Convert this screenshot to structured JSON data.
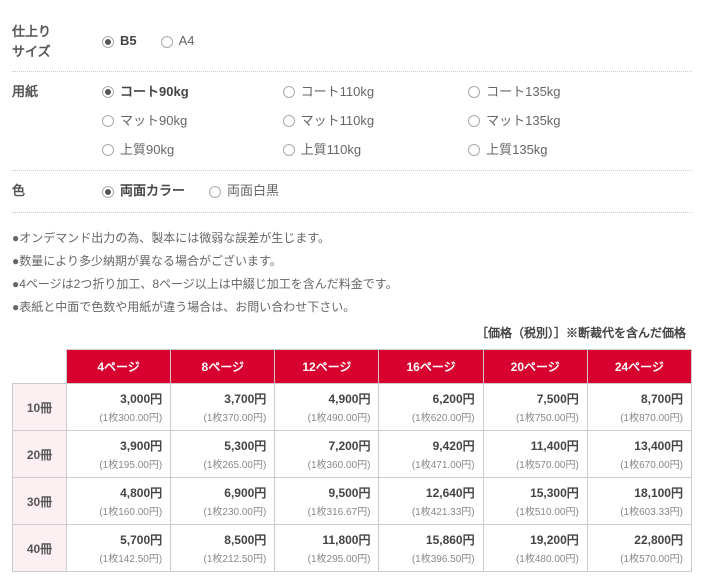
{
  "size": {
    "label": "仕上り\nサイズ",
    "options": [
      {
        "label": "B5",
        "checked": true
      },
      {
        "label": "A4",
        "checked": false
      }
    ]
  },
  "paper": {
    "label": "用紙",
    "columns": [
      [
        {
          "label": "コート90kg",
          "checked": true
        },
        {
          "label": "マット90kg",
          "checked": false
        },
        {
          "label": "上質90kg",
          "checked": false
        }
      ],
      [
        {
          "label": "コート110kg",
          "checked": false
        },
        {
          "label": "マット110kg",
          "checked": false
        },
        {
          "label": "上質110kg",
          "checked": false
        }
      ],
      [
        {
          "label": "コート135kg",
          "checked": false
        },
        {
          "label": "マット135kg",
          "checked": false
        },
        {
          "label": "上質135kg",
          "checked": false
        }
      ]
    ]
  },
  "color": {
    "label": "色",
    "options": [
      {
        "label": "両面カラー",
        "checked": true
      },
      {
        "label": "両面白黒",
        "checked": false
      }
    ]
  },
  "notes": [
    "●オンデマンド出力の為、製本には微弱な誤差が生じます。",
    "●数量により多少納期が異なる場合がございます。",
    "●4ページは2つ折り加工、8ページ以上は中綴じ加工を含んだ料金です。",
    "●表紙と中面で色数や用紙が違う場合は、お問い合わせ下さい。"
  ],
  "price_caption": "［価格（税別）］※断裁代を含んだ価格",
  "price_table": {
    "columns": [
      "4ページ",
      "8ページ",
      "12ページ",
      "16ページ",
      "20ページ",
      "24ページ"
    ],
    "rows": [
      {
        "qty": "10冊",
        "cells": [
          {
            "main": "3,000円",
            "sub": "(1枚300.00円)"
          },
          {
            "main": "3,700円",
            "sub": "(1枚370.00円)"
          },
          {
            "main": "4,900円",
            "sub": "(1枚490.00円)"
          },
          {
            "main": "6,200円",
            "sub": "(1枚620.00円)"
          },
          {
            "main": "7,500円",
            "sub": "(1枚750.00円)"
          },
          {
            "main": "8,700円",
            "sub": "(1枚870.00円)"
          }
        ]
      },
      {
        "qty": "20冊",
        "cells": [
          {
            "main": "3,900円",
            "sub": "(1枚195.00円)"
          },
          {
            "main": "5,300円",
            "sub": "(1枚265.00円)"
          },
          {
            "main": "7,200円",
            "sub": "(1枚360.00円)"
          },
          {
            "main": "9,420円",
            "sub": "(1枚471.00円)"
          },
          {
            "main": "11,400円",
            "sub": "(1枚570.00円)"
          },
          {
            "main": "13,400円",
            "sub": "(1枚670.00円)"
          }
        ]
      },
      {
        "qty": "30冊",
        "cells": [
          {
            "main": "4,800円",
            "sub": "(1枚160.00円)"
          },
          {
            "main": "6,900円",
            "sub": "(1枚230.00円)"
          },
          {
            "main": "9,500円",
            "sub": "(1枚316.67円)"
          },
          {
            "main": "12,640円",
            "sub": "(1枚421.33円)"
          },
          {
            "main": "15,300円",
            "sub": "(1枚510.00円)"
          },
          {
            "main": "18,100円",
            "sub": "(1枚603.33円)"
          }
        ]
      },
      {
        "qty": "40冊",
        "cells": [
          {
            "main": "5,700円",
            "sub": "(1枚142.50円)"
          },
          {
            "main": "8,500円",
            "sub": "(1枚212.50円)"
          },
          {
            "main": "11,800円",
            "sub": "(1枚295.00円)"
          },
          {
            "main": "15,860円",
            "sub": "(1枚396.50円)"
          },
          {
            "main": "19,200円",
            "sub": "(1枚480.00円)"
          },
          {
            "main": "22,800円",
            "sub": "(1枚570.00円)"
          }
        ]
      }
    ]
  }
}
